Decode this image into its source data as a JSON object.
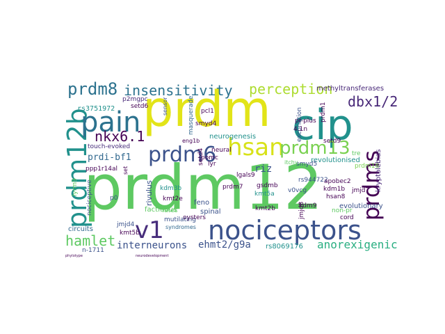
{
  "wordcloud": {
    "words": [
      {
        "text": "prdm12",
        "color": "#5ec962"
      },
      {
        "text": "prdm",
        "color": "#e2e418"
      },
      {
        "text": "cip",
        "color": "#21918c"
      },
      {
        "text": "nociceptors",
        "color": "#3b528b"
      },
      {
        "text": "prdm12b",
        "color": "#21918c"
      },
      {
        "text": "pain",
        "color": "#2c728e"
      },
      {
        "text": "hsan",
        "color": "#d8e219"
      },
      {
        "text": "prdms",
        "color": "#440154"
      },
      {
        "text": "prdm6",
        "color": "#3b528b"
      },
      {
        "text": "prdm13",
        "color": "#7ad151"
      },
      {
        "text": "v1",
        "color": "#472d7b"
      },
      {
        "text": "prdm8",
        "color": "#2c728e"
      },
      {
        "text": "insensitivity",
        "color": "#2c728e"
      },
      {
        "text": "perception",
        "color": "#addc30"
      },
      {
        "text": "hamlet",
        "color": "#5ec962"
      },
      {
        "text": "dbx1/2",
        "color": "#482878"
      },
      {
        "text": "nkx6.1",
        "color": "#440154"
      },
      {
        "text": "interneurons",
        "color": "#3b528b"
      },
      {
        "text": "ehmt2/g9a",
        "color": "#3b528b"
      },
      {
        "text": "anorexigenic",
        "color": "#28ae80"
      },
      {
        "text": "prdi-bf1",
        "color": "#31688e"
      },
      {
        "text": "riz",
        "color": "#3b528b"
      },
      {
        "text": "methyltransferases",
        "color": "#482878"
      },
      {
        "text": "rs3751972",
        "color": "#21918c"
      },
      {
        "text": "neurogenesis",
        "color": "#21918c"
      },
      {
        "text": "touch-evoked",
        "color": "#472d7b"
      },
      {
        "text": "excoriation",
        "color": "#3b528b"
      },
      {
        "text": "pcl1",
        "color": "#440154"
      },
      {
        "text": "4.1n",
        "color": "#440154"
      },
      {
        "text": "pr-plus",
        "color": "#440154"
      },
      {
        "text": "setd9",
        "color": "#440154"
      },
      {
        "text": "kryptolebias",
        "color": "#482878"
      },
      {
        "text": "revolutionised",
        "color": "#21918c"
      },
      {
        "text": "masquerade",
        "color": "#31688e"
      },
      {
        "text": "smyd4",
        "color": "#440154"
      },
      {
        "text": "p2mgpc",
        "color": "#482878"
      },
      {
        "text": "sensor",
        "color": "#3b528b"
      },
      {
        "text": "eng1b",
        "color": "#440154"
      },
      {
        "text": "ppp1r14al",
        "color": "#440154"
      },
      {
        "text": "factitious",
        "color": "#5ec962"
      },
      {
        "text": "spinal",
        "color": "#3b528b"
      },
      {
        "text": "lgals9",
        "color": "#440154"
      },
      {
        "text": "smyd5",
        "color": "#3b528b"
      },
      {
        "text": "rs944722",
        "color": "#3b528b"
      },
      {
        "text": "apobec2",
        "color": "#440154"
      },
      {
        "text": "evolutionary",
        "color": "#3b528b"
      },
      {
        "text": "prdm16",
        "color": "#7ad151"
      },
      {
        "text": "jmjd7",
        "color": "#440154"
      },
      {
        "text": "rivulus",
        "color": "#3b528b"
      },
      {
        "text": "kdm3b",
        "color": "#21918c"
      },
      {
        "text": "feno",
        "color": "#3b528b"
      },
      {
        "text": "kmt2e",
        "color": "#440154"
      },
      {
        "text": "p0",
        "color": "#3b528b"
      },
      {
        "text": "nociceptive",
        "color": "#3b528b"
      },
      {
        "text": "fates",
        "color": "#5ec962"
      },
      {
        "text": "mutilating",
        "color": "#3b528b"
      },
      {
        "text": "oysters",
        "color": "#440154"
      },
      {
        "text": "pomc",
        "color": "#440154"
      },
      {
        "text": "prdm7",
        "color": "#440154"
      },
      {
        "text": "gsdmb",
        "color": "#440154"
      },
      {
        "text": "kmt5a",
        "color": "#21918c"
      },
      {
        "text": "kmt2b",
        "color": "#440154"
      },
      {
        "text": "v0vcg",
        "color": "#3b528b"
      },
      {
        "text": "kdm1b",
        "color": "#440154"
      },
      {
        "text": "hsan8",
        "color": "#440154"
      },
      {
        "text": "non-pr",
        "color": "#5ec962"
      },
      {
        "text": "kdm9",
        "color": "#440154"
      },
      {
        "text": "cord",
        "color": "#440154"
      },
      {
        "text": "circuits",
        "color": "#31688e"
      },
      {
        "text": "jmjd4",
        "color": "#3b528b"
      },
      {
        "text": "kmt5b",
        "color": "#440154"
      },
      {
        "text": "rs8069176",
        "color": "#21918c"
      },
      {
        "text": "lyrm9",
        "color": "#5ec962"
      },
      {
        "text": "setd4",
        "color": "#440154"
      },
      {
        "text": "lyr",
        "color": "#440154"
      },
      {
        "text": "neural",
        "color": "#440154"
      },
      {
        "text": "setd6",
        "color": "#440154"
      },
      {
        "text": "n-1711",
        "color": "#3b528b"
      },
      {
        "text": "jmjd8",
        "color": "#440154"
      },
      {
        "text": "tre",
        "color": "#5ec962"
      },
      {
        "text": "prdm1",
        "color": "#440154"
      },
      {
        "text": "itchy",
        "color": "#5ec962"
      },
      {
        "text": "syndromes",
        "color": "#31688e"
      },
      {
        "text": "set",
        "color": "#440154"
      },
      {
        "text": "phylotype",
        "color": "#440154"
      },
      {
        "text": "neurodevelopment",
        "color": "#440154"
      }
    ]
  }
}
